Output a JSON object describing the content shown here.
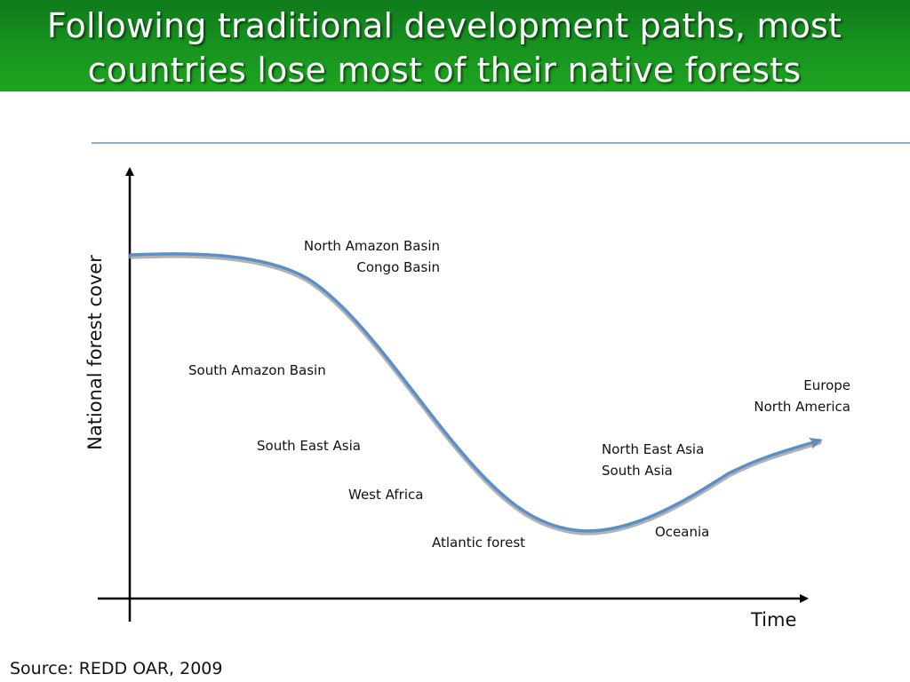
{
  "title": {
    "line1": "Following traditional development paths, most",
    "line2": "countries lose most of their native forests"
  },
  "axes": {
    "y_label": "National forest cover",
    "x_label": "Time"
  },
  "labels": {
    "north_amazon": "North Amazon Basin",
    "congo": "Congo Basin",
    "south_amazon": "South Amazon Basin",
    "south_east_asia": "South East Asia",
    "west_africa": "West Africa",
    "atlantic_forest": "Atlantic forest",
    "north_east_asia": "North East Asia",
    "south_asia": "South Asia",
    "oceania": "Oceania",
    "europe": "Europe",
    "north_america": "North America"
  },
  "source": "Source: REDD OAR, 2009",
  "colors": {
    "title_bar": "#16901f",
    "curve": "#5b8fc9",
    "rule": "#8fb0c4"
  }
}
